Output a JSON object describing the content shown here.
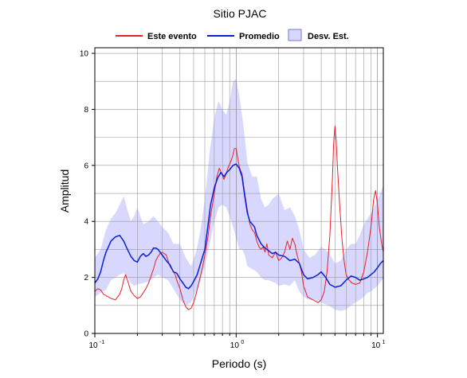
{
  "chart_data": {
    "type": "line",
    "title": "Sitio PJAC",
    "xlabel": "Periodo (s)",
    "ylabel": "Amplitud",
    "xscale": "log",
    "xlim": [
      0.1,
      11
    ],
    "ylim": [
      0,
      10.2
    ],
    "grid": true,
    "legend_placement": "top",
    "x_ticks": [
      {
        "value": 0.1,
        "base": "10",
        "exp": "-1"
      },
      {
        "value": 1,
        "base": "10",
        "exp": "0"
      },
      {
        "value": 10,
        "base": "10",
        "exp": "1"
      }
    ],
    "y_ticks": [
      0,
      2,
      4,
      6,
      8,
      10
    ],
    "legend": [
      {
        "label": "Este evento",
        "kind": "line",
        "color": "#e8202a"
      },
      {
        "label": "Promedio",
        "kind": "line",
        "color": "#0a1ed6"
      },
      {
        "label": "Desv. Est.",
        "kind": "band",
        "color": "#d8d8ff"
      }
    ],
    "series": [
      {
        "name": "Este evento",
        "color": "#e8202a",
        "points": [
          [
            0.1,
            1.5
          ],
          [
            0.105,
            1.6
          ],
          [
            0.11,
            1.55
          ],
          [
            0.115,
            1.4
          ],
          [
            0.12,
            1.35
          ],
          [
            0.125,
            1.3
          ],
          [
            0.13,
            1.25
          ],
          [
            0.14,
            1.2
          ],
          [
            0.145,
            1.3
          ],
          [
            0.15,
            1.4
          ],
          [
            0.155,
            1.6
          ],
          [
            0.16,
            1.9
          ],
          [
            0.165,
            2.1
          ],
          [
            0.17,
            1.9
          ],
          [
            0.175,
            1.7
          ],
          [
            0.18,
            1.5
          ],
          [
            0.19,
            1.35
          ],
          [
            0.2,
            1.25
          ],
          [
            0.21,
            1.3
          ],
          [
            0.22,
            1.45
          ],
          [
            0.23,
            1.6
          ],
          [
            0.24,
            1.8
          ],
          [
            0.25,
            2.05
          ],
          [
            0.26,
            2.3
          ],
          [
            0.27,
            2.6
          ],
          [
            0.28,
            2.75
          ],
          [
            0.29,
            2.85
          ],
          [
            0.3,
            2.9
          ],
          [
            0.31,
            2.85
          ],
          [
            0.32,
            2.8
          ],
          [
            0.33,
            2.6
          ],
          [
            0.34,
            2.4
          ],
          [
            0.35,
            2.3
          ],
          [
            0.36,
            2.2
          ],
          [
            0.37,
            2.1
          ],
          [
            0.38,
            1.9
          ],
          [
            0.4,
            1.6
          ],
          [
            0.42,
            1.2
          ],
          [
            0.44,
            0.95
          ],
          [
            0.46,
            0.85
          ],
          [
            0.48,
            0.9
          ],
          [
            0.5,
            1.1
          ],
          [
            0.52,
            1.4
          ],
          [
            0.55,
            1.9
          ],
          [
            0.58,
            2.4
          ],
          [
            0.6,
            2.8
          ],
          [
            0.63,
            3.4
          ],
          [
            0.66,
            4.2
          ],
          [
            0.7,
            5.0
          ],
          [
            0.73,
            5.6
          ],
          [
            0.76,
            5.9
          ],
          [
            0.79,
            5.7
          ],
          [
            0.82,
            5.5
          ],
          [
            0.85,
            5.7
          ],
          [
            0.88,
            5.95
          ],
          [
            0.91,
            6.1
          ],
          [
            0.94,
            6.3
          ],
          [
            0.97,
            6.6
          ],
          [
            1.0,
            6.6
          ],
          [
            1.03,
            6.2
          ],
          [
            1.06,
            5.9
          ],
          [
            1.1,
            5.7
          ],
          [
            1.15,
            5.0
          ],
          [
            1.2,
            4.4
          ],
          [
            1.25,
            3.9
          ],
          [
            1.3,
            3.7
          ],
          [
            1.35,
            3.6
          ],
          [
            1.4,
            3.3
          ],
          [
            1.45,
            3.1
          ],
          [
            1.5,
            3.0
          ],
          [
            1.55,
            3.1
          ],
          [
            1.6,
            2.9
          ],
          [
            1.65,
            3.2
          ],
          [
            1.7,
            2.8
          ],
          [
            1.8,
            2.7
          ],
          [
            1.9,
            2.9
          ],
          [
            2.0,
            2.6
          ],
          [
            2.1,
            2.7
          ],
          [
            2.2,
            2.9
          ],
          [
            2.3,
            3.3
          ],
          [
            2.4,
            3.0
          ],
          [
            2.5,
            3.4
          ],
          [
            2.6,
            3.2
          ],
          [
            2.7,
            2.8
          ],
          [
            2.8,
            2.5
          ],
          [
            2.9,
            2.2
          ],
          [
            3.0,
            1.7
          ],
          [
            3.2,
            1.3
          ],
          [
            3.5,
            1.2
          ],
          [
            3.8,
            1.1
          ],
          [
            4.0,
            1.2
          ],
          [
            4.2,
            1.5
          ],
          [
            4.4,
            2.2
          ],
          [
            4.6,
            3.5
          ],
          [
            4.8,
            5.5
          ],
          [
            4.9,
            6.8
          ],
          [
            5.0,
            7.4
          ],
          [
            5.1,
            6.9
          ],
          [
            5.2,
            6.0
          ],
          [
            5.4,
            4.6
          ],
          [
            5.6,
            3.4
          ],
          [
            5.8,
            2.6
          ],
          [
            6.0,
            2.1
          ],
          [
            6.3,
            1.9
          ],
          [
            6.6,
            1.8
          ],
          [
            7.0,
            1.75
          ],
          [
            7.5,
            1.8
          ],
          [
            8.0,
            2.2
          ],
          [
            8.5,
            2.9
          ],
          [
            9.0,
            3.8
          ],
          [
            9.4,
            4.8
          ],
          [
            9.7,
            5.1
          ],
          [
            10.0,
            4.6
          ],
          [
            10.3,
            3.8
          ],
          [
            10.7,
            3.2
          ],
          [
            11.0,
            2.9
          ]
        ]
      },
      {
        "name": "Promedio",
        "color": "#0a1ed6",
        "points": [
          [
            0.1,
            1.8
          ],
          [
            0.105,
            1.95
          ],
          [
            0.11,
            2.2
          ],
          [
            0.115,
            2.6
          ],
          [
            0.12,
            2.9
          ],
          [
            0.125,
            3.1
          ],
          [
            0.13,
            3.3
          ],
          [
            0.14,
            3.45
          ],
          [
            0.15,
            3.5
          ],
          [
            0.16,
            3.3
          ],
          [
            0.17,
            3.0
          ],
          [
            0.18,
            2.75
          ],
          [
            0.19,
            2.6
          ],
          [
            0.2,
            2.55
          ],
          [
            0.21,
            2.75
          ],
          [
            0.22,
            2.85
          ],
          [
            0.23,
            2.75
          ],
          [
            0.24,
            2.8
          ],
          [
            0.25,
            2.9
          ],
          [
            0.26,
            3.05
          ],
          [
            0.27,
            3.05
          ],
          [
            0.28,
            3.0
          ],
          [
            0.3,
            2.8
          ],
          [
            0.32,
            2.6
          ],
          [
            0.34,
            2.45
          ],
          [
            0.36,
            2.2
          ],
          [
            0.38,
            2.15
          ],
          [
            0.4,
            1.95
          ],
          [
            0.42,
            1.8
          ],
          [
            0.44,
            1.65
          ],
          [
            0.46,
            1.6
          ],
          [
            0.48,
            1.7
          ],
          [
            0.5,
            1.85
          ],
          [
            0.53,
            2.1
          ],
          [
            0.56,
            2.5
          ],
          [
            0.6,
            3.0
          ],
          [
            0.63,
            3.8
          ],
          [
            0.66,
            4.6
          ],
          [
            0.7,
            5.2
          ],
          [
            0.74,
            5.55
          ],
          [
            0.78,
            5.75
          ],
          [
            0.82,
            5.6
          ],
          [
            0.86,
            5.75
          ],
          [
            0.9,
            5.85
          ],
          [
            0.95,
            6.0
          ],
          [
            1.0,
            6.05
          ],
          [
            1.05,
            5.9
          ],
          [
            1.1,
            5.6
          ],
          [
            1.15,
            4.9
          ],
          [
            1.2,
            4.3
          ],
          [
            1.25,
            4.0
          ],
          [
            1.3,
            3.9
          ],
          [
            1.35,
            3.8
          ],
          [
            1.4,
            3.5
          ],
          [
            1.5,
            3.2
          ],
          [
            1.6,
            3.05
          ],
          [
            1.7,
            2.95
          ],
          [
            1.8,
            2.85
          ],
          [
            1.9,
            2.9
          ],
          [
            2.0,
            2.8
          ],
          [
            2.2,
            2.75
          ],
          [
            2.4,
            2.6
          ],
          [
            2.6,
            2.65
          ],
          [
            2.8,
            2.5
          ],
          [
            3.0,
            2.1
          ],
          [
            3.2,
            1.95
          ],
          [
            3.5,
            2.0
          ],
          [
            3.8,
            2.1
          ],
          [
            4.0,
            2.2
          ],
          [
            4.3,
            2.0
          ],
          [
            4.6,
            1.75
          ],
          [
            5.0,
            1.65
          ],
          [
            5.5,
            1.7
          ],
          [
            6.0,
            1.9
          ],
          [
            6.5,
            2.05
          ],
          [
            7.0,
            2.0
          ],
          [
            7.5,
            1.9
          ],
          [
            8.0,
            1.95
          ],
          [
            8.5,
            2.0
          ],
          [
            9.0,
            2.1
          ],
          [
            9.5,
            2.2
          ],
          [
            10.0,
            2.35
          ],
          [
            10.5,
            2.5
          ],
          [
            11.0,
            2.6
          ]
        ]
      }
    ],
    "band": {
      "name": "Desv. Est.",
      "color": "#d8d8ff",
      "x": [
        0.1,
        0.11,
        0.12,
        0.13,
        0.14,
        0.15,
        0.16,
        0.17,
        0.18,
        0.19,
        0.2,
        0.22,
        0.24,
        0.26,
        0.28,
        0.3,
        0.33,
        0.36,
        0.4,
        0.44,
        0.48,
        0.52,
        0.56,
        0.6,
        0.65,
        0.7,
        0.75,
        0.8,
        0.85,
        0.9,
        0.95,
        1.0,
        1.05,
        1.1,
        1.15,
        1.2,
        1.3,
        1.4,
        1.5,
        1.6,
        1.7,
        1.8,
        1.9,
        2.0,
        2.2,
        2.4,
        2.6,
        2.8,
        3.0,
        3.3,
        3.6,
        4.0,
        4.5,
        5.0,
        5.5,
        6.0,
        6.5,
        7.0,
        7.5,
        8.0,
        8.5,
        9.0,
        9.5,
        10.0,
        10.5,
        11.0
      ],
      "upper": [
        2.7,
        3.0,
        3.7,
        4.1,
        4.3,
        4.6,
        4.9,
        4.4,
        4.0,
        4.2,
        4.5,
        3.9,
        4.0,
        4.2,
        4.0,
        3.8,
        3.6,
        3.2,
        3.2,
        2.7,
        2.4,
        2.9,
        3.7,
        4.8,
        6.5,
        7.7,
        8.3,
        8.0,
        7.8,
        8.3,
        9.0,
        9.1,
        8.5,
        7.8,
        7.0,
        6.1,
        5.6,
        5.6,
        4.8,
        4.5,
        4.6,
        4.8,
        4.9,
        5.0,
        4.4,
        4.5,
        4.2,
        3.7,
        3.0,
        2.7,
        2.8,
        3.1,
        2.9,
        2.5,
        2.6,
        3.0,
        3.2,
        3.2,
        3.5,
        3.9,
        4.1,
        4.3,
        4.5,
        4.8,
        5.0,
        5.3
      ],
      "lower": [
        1.3,
        1.45,
        1.55,
        1.9,
        2.0,
        2.1,
        2.15,
        2.0,
        1.8,
        1.7,
        1.75,
        1.8,
        1.85,
        2.0,
        2.1,
        2.0,
        1.9,
        1.6,
        1.2,
        1.0,
        1.1,
        1.5,
        1.9,
        2.4,
        3.2,
        4.0,
        4.5,
        4.6,
        4.5,
        4.2,
        3.8,
        3.4,
        3.0,
        3.0,
        2.8,
        2.4,
        2.3,
        2.2,
        2.0,
        1.9,
        1.9,
        1.85,
        1.8,
        1.7,
        1.75,
        1.7,
        1.9,
        1.5,
        1.3,
        1.2,
        1.2,
        1.1,
        1.0,
        0.85,
        0.8,
        0.85,
        1.0,
        1.1,
        1.2,
        1.3,
        1.45,
        1.5,
        1.6,
        1.7,
        1.85,
        1.95
      ]
    }
  }
}
